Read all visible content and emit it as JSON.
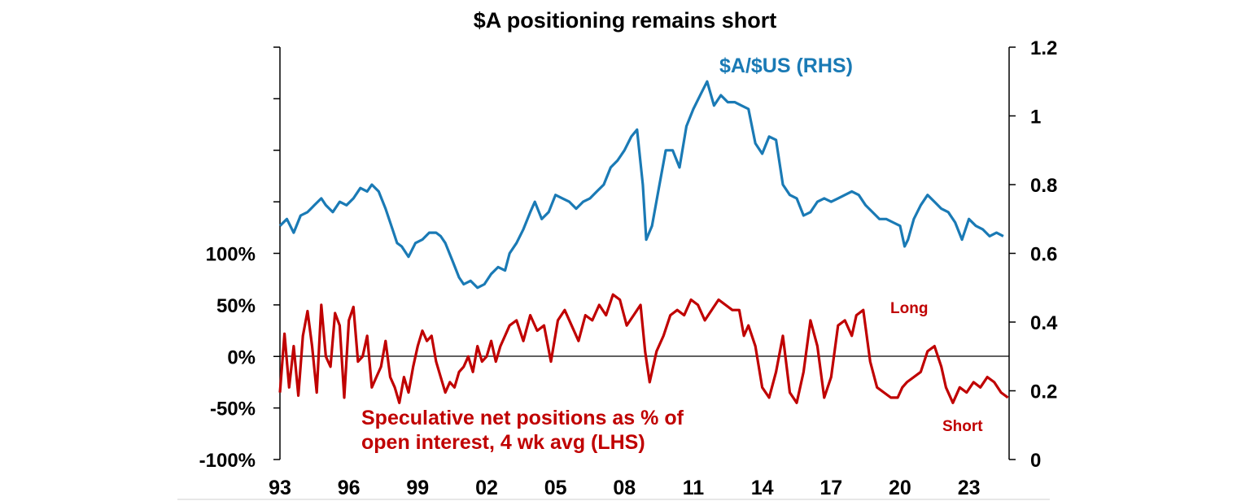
{
  "chart_data": {
    "type": "line",
    "title": "$A positioning remains short",
    "colors": {
      "aud_usd": "#1a7ab5",
      "spec_net": "#c00000",
      "axis": "#000000"
    },
    "x_ticks": [
      "93",
      "96",
      "99",
      "02",
      "05",
      "08",
      "11",
      "14",
      "17",
      "20",
      "23"
    ],
    "x_range": [
      1993.0,
      2024.75
    ],
    "y_left": {
      "ticks": [
        "100%",
        "50%",
        "0%",
        "-50%",
        "-100%"
      ],
      "range": [
        -100,
        300
      ],
      "unit": "%"
    },
    "y_right": {
      "ticks": [
        "1.2",
        "1",
        "0.8",
        "0.6",
        "0.4",
        "0.2",
        "0"
      ],
      "range": [
        0,
        1.2
      ]
    },
    "annotations": {
      "aud_label": "$A/$US (RHS)",
      "spec_label_line1": "Speculative net positions as % of",
      "spec_label_line2": "open interest, 4 wk avg (LHS)",
      "long_label": "Long",
      "short_label": "Short"
    },
    "series": [
      {
        "name": "$A/$US (RHS)",
        "axis": "right",
        "x": [
          1993.0,
          1993.3,
          1993.6,
          1993.9,
          1994.2,
          1994.5,
          1994.8,
          1995.0,
          1995.3,
          1995.6,
          1995.9,
          1996.2,
          1996.5,
          1996.8,
          1997.0,
          1997.3,
          1997.6,
          1997.9,
          1998.1,
          1998.3,
          1998.6,
          1998.9,
          1999.2,
          1999.5,
          1999.8,
          2000.0,
          2000.2,
          2000.5,
          2000.8,
          2001.0,
          2001.3,
          2001.6,
          2001.9,
          2002.2,
          2002.5,
          2002.8,
          2003.0,
          2003.3,
          2003.6,
          2003.9,
          2004.1,
          2004.4,
          2004.7,
          2005.0,
          2005.3,
          2005.6,
          2005.9,
          2006.2,
          2006.5,
          2006.8,
          2007.1,
          2007.4,
          2007.7,
          2008.0,
          2008.3,
          2008.55,
          2008.8,
          2008.95,
          2009.2,
          2009.5,
          2009.8,
          2010.1,
          2010.4,
          2010.7,
          2011.0,
          2011.3,
          2011.6,
          2011.9,
          2012.2,
          2012.5,
          2012.8,
          2013.1,
          2013.4,
          2013.7,
          2014.0,
          2014.3,
          2014.6,
          2014.9,
          2015.2,
          2015.5,
          2015.8,
          2016.1,
          2016.4,
          2016.7,
          2017.0,
          2017.3,
          2017.6,
          2017.9,
          2018.2,
          2018.5,
          2018.8,
          2019.1,
          2019.4,
          2019.7,
          2020.0,
          2020.2,
          2020.35,
          2020.6,
          2020.9,
          2021.2,
          2021.5,
          2021.8,
          2022.1,
          2022.4,
          2022.7,
          2023.0,
          2023.3,
          2023.6,
          2023.9,
          2024.2,
          2024.5
        ],
        "values": [
          0.68,
          0.7,
          0.66,
          0.71,
          0.72,
          0.74,
          0.76,
          0.74,
          0.72,
          0.75,
          0.74,
          0.76,
          0.79,
          0.78,
          0.8,
          0.78,
          0.73,
          0.67,
          0.63,
          0.62,
          0.59,
          0.63,
          0.64,
          0.66,
          0.66,
          0.65,
          0.63,
          0.58,
          0.53,
          0.51,
          0.52,
          0.5,
          0.51,
          0.54,
          0.56,
          0.55,
          0.6,
          0.63,
          0.67,
          0.72,
          0.75,
          0.7,
          0.72,
          0.77,
          0.76,
          0.75,
          0.73,
          0.75,
          0.76,
          0.78,
          0.8,
          0.85,
          0.87,
          0.9,
          0.94,
          0.96,
          0.8,
          0.64,
          0.68,
          0.79,
          0.9,
          0.9,
          0.85,
          0.97,
          1.02,
          1.06,
          1.1,
          1.03,
          1.06,
          1.04,
          1.04,
          1.03,
          1.02,
          0.92,
          0.89,
          0.94,
          0.93,
          0.8,
          0.77,
          0.76,
          0.71,
          0.72,
          0.75,
          0.76,
          0.75,
          0.76,
          0.77,
          0.78,
          0.77,
          0.74,
          0.72,
          0.7,
          0.7,
          0.69,
          0.68,
          0.62,
          0.64,
          0.7,
          0.74,
          0.77,
          0.75,
          0.73,
          0.72,
          0.69,
          0.64,
          0.7,
          0.68,
          0.67,
          0.65,
          0.66,
          0.65
        ]
      },
      {
        "name": "Speculative net positions as % of open interest, 4 wk avg (LHS)",
        "axis": "left",
        "x": [
          1993.0,
          1993.2,
          1993.4,
          1993.6,
          1993.8,
          1994.0,
          1994.2,
          1994.4,
          1994.6,
          1994.8,
          1995.0,
          1995.2,
          1995.4,
          1995.6,
          1995.8,
          1996.0,
          1996.2,
          1996.4,
          1996.6,
          1996.8,
          1997.0,
          1997.2,
          1997.4,
          1997.6,
          1997.8,
          1998.0,
          1998.2,
          1998.4,
          1998.6,
          1998.8,
          1999.0,
          1999.2,
          1999.4,
          1999.6,
          1999.8,
          2000.0,
          2000.2,
          2000.4,
          2000.6,
          2000.8,
          2001.0,
          2001.2,
          2001.4,
          2001.6,
          2001.8,
          2002.0,
          2002.2,
          2002.4,
          2002.6,
          2002.8,
          2003.0,
          2003.3,
          2003.6,
          2003.9,
          2004.2,
          2004.5,
          2004.8,
          2005.1,
          2005.4,
          2005.7,
          2006.0,
          2006.3,
          2006.6,
          2006.9,
          2007.2,
          2007.5,
          2007.8,
          2008.1,
          2008.4,
          2008.7,
          2008.9,
          2009.1,
          2009.4,
          2009.7,
          2010.0,
          2010.3,
          2010.6,
          2010.9,
          2011.2,
          2011.5,
          2011.8,
          2012.1,
          2012.4,
          2012.7,
          2013.0,
          2013.2,
          2013.4,
          2013.7,
          2014.0,
          2014.3,
          2014.6,
          2014.9,
          2015.2,
          2015.5,
          2015.8,
          2016.1,
          2016.4,
          2016.7,
          2017.0,
          2017.3,
          2017.6,
          2017.9,
          2018.1,
          2018.4,
          2018.7,
          2019.0,
          2019.3,
          2019.6,
          2019.9,
          2020.1,
          2020.3,
          2020.6,
          2020.9,
          2021.2,
          2021.5,
          2021.8,
          2022.0,
          2022.3,
          2022.6,
          2022.9,
          2023.2,
          2023.5,
          2023.8,
          2024.1,
          2024.4,
          2024.7
        ],
        "values": [
          -35,
          22,
          -30,
          10,
          -38,
          20,
          44,
          10,
          -35,
          50,
          0,
          -10,
          42,
          30,
          -40,
          35,
          48,
          -5,
          0,
          20,
          -30,
          -20,
          -10,
          15,
          -20,
          -30,
          -45,
          -20,
          -35,
          -10,
          10,
          25,
          15,
          20,
          -5,
          -20,
          -35,
          -25,
          -30,
          -15,
          -10,
          0,
          -15,
          10,
          -5,
          0,
          15,
          -5,
          10,
          20,
          30,
          35,
          15,
          40,
          25,
          30,
          -5,
          35,
          45,
          30,
          15,
          40,
          35,
          50,
          40,
          60,
          55,
          30,
          40,
          50,
          5,
          -25,
          5,
          20,
          40,
          45,
          40,
          55,
          50,
          35,
          45,
          55,
          50,
          45,
          45,
          20,
          30,
          10,
          -30,
          -40,
          -15,
          20,
          -35,
          -45,
          -15,
          35,
          10,
          -40,
          -20,
          30,
          35,
          20,
          40,
          45,
          -5,
          -30,
          -35,
          -40,
          -40,
          -30,
          -25,
          -20,
          -15,
          5,
          10,
          -10,
          -30,
          -45,
          -30,
          -35,
          -25,
          -30,
          -20,
          -25,
          -35,
          -40
        ]
      }
    ]
  }
}
